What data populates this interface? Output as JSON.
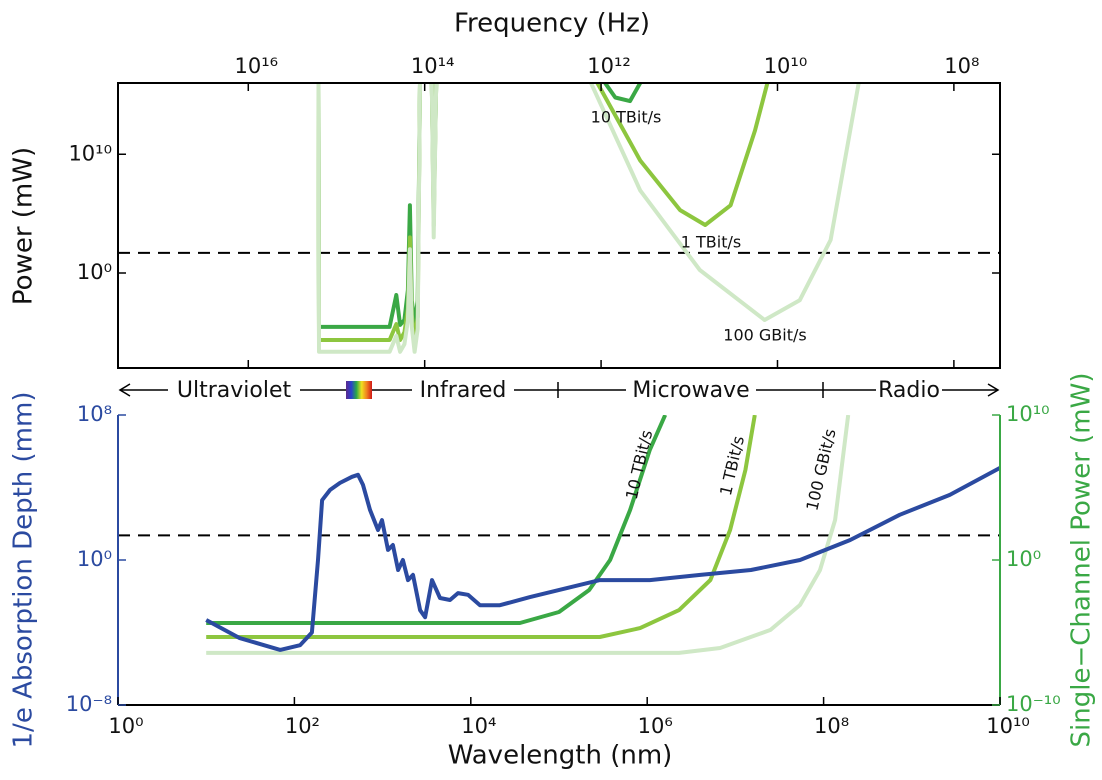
{
  "chart_data": [
    {
      "type": "line",
      "xlabel": "Frequency (Hz)",
      "ylabel": "Power (mW)",
      "log_x": true,
      "log_y": true,
      "xlim": [
        3e+17,
        30000000.0
      ],
      "ylim": [
        1e-08,
        1e+16
      ],
      "xticks": [
        {
          "value": 1e+16,
          "label": "10¹⁶"
        },
        {
          "value": 100000000000000.0,
          "label": "10¹⁴"
        },
        {
          "value": 1000000000000.0,
          "label": "10¹²"
        },
        {
          "value": 10000000000.0,
          "label": "10¹⁰"
        },
        {
          "value": 100000000.0,
          "label": "10⁸"
        }
      ],
      "yticks": [
        {
          "value": 1,
          "label": "10⁰"
        },
        {
          "value": 10000000000.0,
          "label": "10¹⁰"
        }
      ],
      "threshold": 50,
      "series": [
        {
          "name": "10 TBit/s",
          "color": "#3aa845",
          "x": [
            1600000000000000.0,
            1580000000000000.0,
            250000000000000.0,
            210000000000000.0,
            190000000000000.0,
            170000000000000.0,
            155000000000000.0,
            147000000000000.0,
            140000000000000.0,
            130000000000000.0,
            120000000000000.0,
            113000000000000.0,
            90000000000000.0,
            83000000000000.0,
            79000000000000.0,
            74000000000000.0,
            10000000000000.0,
            900000000000.0,
            690000000000.0,
            470000000000.0,
            360000000000.0
          ],
          "values": [
            1e+16,
            2.9e-05,
            2.9e-05,
            0.014,
            4.3e-05,
            0.00011,
            0.037,
            500000.0,
            0.005,
            4.3e-05,
            0.005,
            1e+16,
            null,
            1e+16,
            100000.0,
            1e+16,
            null,
            1e+16,
            600000000000000.0,
            300000000000000.0,
            1e+16
          ]
        },
        {
          "name": "1 TBit/s",
          "color": "#8dc63f",
          "x": [
            1600000000000000.0,
            1580000000000000.0,
            250000000000000.0,
            210000000000000.0,
            190000000000000.0,
            170000000000000.0,
            155000000000000.0,
            147000000000000.0,
            140000000000000.0,
            130000000000000.0,
            120000000000000.0,
            113000000000000.0,
            90000000000000.0,
            83000000000000.0,
            79000000000000.0,
            74000000000000.0,
            10000000000000.0,
            1100000000000.0,
            360000000000.0,
            127000000000.0,
            66000000000.0,
            34000000000.0,
            18000000000.0,
            13000000000.0
          ],
          "values": [
            1e+16,
            2.3e-06,
            2.3e-06,
            5e-05,
            2.3e-06,
            1e-05,
            0.001,
            1000.0,
            0.0003,
            2.3e-06,
            0.0002,
            1e+16,
            null,
            1e+16,
            10000.0,
            1e+16,
            null,
            1e+16,
            3000000000.0,
            200000.0,
            11000.0,
            500000.0,
            1000000000000.0,
            1e+16
          ]
        },
        {
          "name": "100 GBit/s",
          "color": "#cfe8c6",
          "x": [
            1600000000000000.0,
            1580000000000000.0,
            250000000000000.0,
            210000000000000.0,
            190000000000000.0,
            170000000000000.0,
            155000000000000.0,
            147000000000000.0,
            140000000000000.0,
            130000000000000.0,
            120000000000000.0,
            113000000000000.0,
            90000000000000.0,
            83000000000000.0,
            79000000000000.0,
            74000000000000.0,
            10000000000000.0,
            1300000000000.0,
            360000000000.0,
            76000000000.0,
            14000000000.0,
            5600000000.0,
            2500000000.0,
            1200000000.0
          ],
          "values": [
            1e+16,
            2.3e-07,
            2.3e-07,
            5e-06,
            2.3e-07,
            1e-06,
            0.0001,
            100.0,
            3e-05,
            2.3e-07,
            2e-05,
            1e+16,
            null,
            1e+16,
            1000.0,
            1e+16,
            null,
            1e+16,
            9000000.0,
            1.8,
            0.00011,
            0.005,
            600,
            1e+16
          ]
        }
      ]
    },
    {
      "type": "line",
      "xlabel": "Wavelength (nm)",
      "ylabel": "1/e Absorption Depth (mm)",
      "y2label": "Single−Channel Power (mW)",
      "log_x": true,
      "log_y": true,
      "xlim": [
        1,
        10000000000.0
      ],
      "ylim": [
        1e-08,
        100000000.0
      ],
      "y2lim": [
        1e-10,
        10000000000.0
      ],
      "xticks": [
        {
          "value": 1,
          "label": "10⁰"
        },
        {
          "value": 100,
          "label": "10²"
        },
        {
          "value": 10000.0,
          "label": "10⁴"
        },
        {
          "value": 1000000.0,
          "label": "10⁶"
        },
        {
          "value": 100000000.0,
          "label": "10⁸"
        },
        {
          "value": 10000000000.0,
          "label": "10¹⁰"
        }
      ],
      "yticks": [
        {
          "value": 1e-08,
          "label": "10⁻⁸"
        },
        {
          "value": 1,
          "label": "10⁰"
        },
        {
          "value": 100000000.0,
          "label": "10⁸"
        }
      ],
      "y2ticks": [
        {
          "value": 1e-10,
          "label": "10⁻¹⁰"
        },
        {
          "value": 1,
          "label": "10⁰"
        },
        {
          "value": 10000000000.0,
          "label": "10¹⁰"
        }
      ],
      "ycolor": "#2b4aa0",
      "y2color": "#3aa845",
      "threshold": 50,
      "threshold_axis": "y2",
      "series": [
        {
          "color": "#3aa845",
          "axis": "y2",
          "name": "10 TBit/s",
          "x": [
            10,
            36000.0,
            100000.0,
            220000.0,
            380000.0,
            640000.0,
            1070000.0,
            1600000.0
          ],
          "values": [
            4.5e-05,
            4.5e-05,
            0.00026,
            0.0085,
            1,
            2800,
            39000000.0,
            10000000000.0
          ]
        },
        {
          "color": "#8dc63f",
          "axis": "y2",
          "name": "1 TBit/s",
          "x": [
            10,
            290000.0,
            830000.0,
            2300000.0,
            5200000.0,
            8700000.0,
            13000000.0,
            16600000.0
          ],
          "values": [
            4.9e-06,
            4.9e-06,
            2e-05,
            0.00035,
            0.042,
            117,
            1600000.0,
            10000000000.0
          ]
        },
        {
          "color": "#cfe8c6",
          "axis": "y2",
          "name": "100 GBit/s",
          "x": [
            10,
            2300000.0,
            6700000.0,
            25000000.0,
            54000000.0,
            91000000.0,
            135000000.0,
            190000000.0
          ],
          "values": [
            3.9e-07,
            3.9e-07,
            8.5e-07,
            1.5e-05,
            0.00079,
            0.2,
            570,
            10000000000.0
          ]
        },
        {
          "color": "#2b4aa0",
          "axis": "y",
          "x": [
            10,
            24,
            69,
            116,
            158,
            185,
            206,
            254,
            329,
            450,
            526,
            600,
            720,
            887,
            985,
            1150,
            1310,
            1500,
            1700,
            1940,
            2210,
            2660,
            3030,
            3630,
            4480,
            5810,
            7160,
            9290,
            12700,
            21400,
            46900,
            290000.0,
            1070000.0,
            4000000.0,
            15000000.0,
            54000000.0,
            200000000.0,
            730000000.0,
            2700000000.0,
            10000000000.0
          ],
          "values": [
            0.00049,
            4.9e-05,
            1.1e-05,
            2e-05,
            0.0001,
            1,
            2000,
            7400,
            18000.0,
            39000.0,
            50000.0,
            14000.0,
            580,
            45,
            160,
            3.6,
            6.7,
            0.28,
            1,
            0.078,
            0.15,
            0.0017,
            0.0007,
            0.078,
            0.008,
            0.0062,
            0.015,
            0.012,
            0.0032,
            0.0032,
            0.009,
            0.078,
            0.078,
            0.15,
            0.28,
            1,
            12.7,
            310,
            3900,
            120000.0
          ]
        }
      ]
    }
  ],
  "bands": [
    "Ultraviolet",
    "Infrared",
    "Microwave",
    "Radio"
  ]
}
